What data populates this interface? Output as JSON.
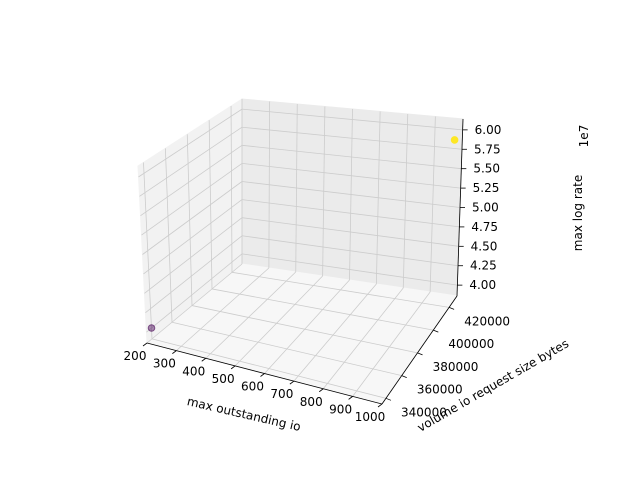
{
  "chart_data": {
    "type": "scatter",
    "projection": "3d",
    "title": "",
    "xlabel": "max outstanding io",
    "ylabel": "volume io request size bytes",
    "zlabel": "max log rate",
    "z_offset_label": "1e7",
    "xlim": [
      200,
      1000
    ],
    "ylim": [
      335000,
      430000
    ],
    "zlim": [
      38600000,
      61400000
    ],
    "x_ticks": [
      "200",
      "300",
      "400",
      "500",
      "600",
      "700",
      "800",
      "900",
      "1000"
    ],
    "y_ticks": [
      "340000",
      "360000",
      "380000",
      "400000",
      "420000"
    ],
    "z_ticks": [
      "4.00",
      "4.25",
      "4.50",
      "4.75",
      "5.00",
      "5.25",
      "5.50",
      "5.75",
      "6.00"
    ],
    "grid": true,
    "points": [
      {
        "x": 200,
        "y": 340000,
        "z": 40000000,
        "color": "#440154"
      },
      {
        "x": 1000,
        "y": 420000,
        "z": 60000000,
        "color": "#fde725"
      }
    ],
    "colors": {
      "pane_left": "#f2f2f2",
      "pane_back": "#ebebeb",
      "pane_floor": "#f7f7f7",
      "grid": "#cccccc"
    }
  }
}
